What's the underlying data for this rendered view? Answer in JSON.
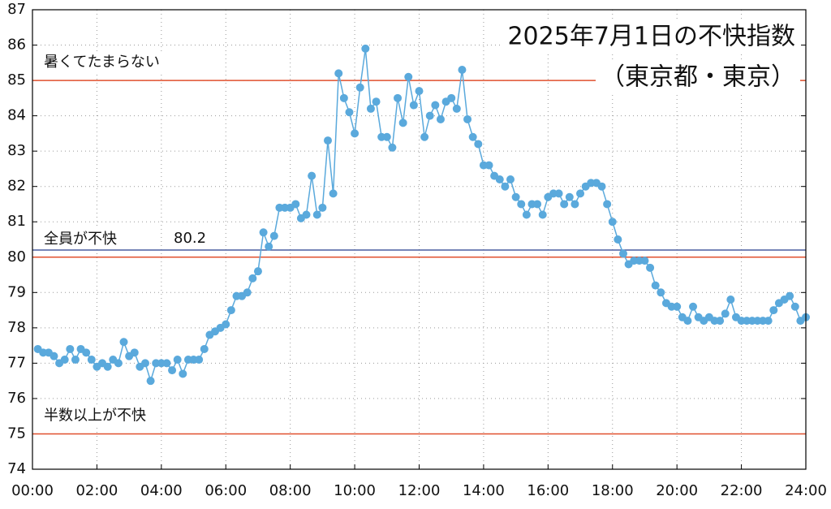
{
  "chart_data": {
    "type": "line",
    "title": "2025年7月1日の不快指数",
    "subtitle": "（東京都・東京）",
    "x": [
      10,
      20,
      30,
      40,
      50,
      60,
      70,
      80,
      90,
      100,
      110,
      120,
      130,
      140,
      150,
      160,
      170,
      180,
      190,
      200,
      210,
      220,
      230,
      240,
      250,
      260,
      270,
      280,
      290,
      300,
      310,
      320,
      330,
      340,
      350,
      360,
      370,
      380,
      390,
      400,
      410,
      420,
      430,
      440,
      450,
      460,
      470,
      480,
      490,
      500,
      510,
      520,
      530,
      540,
      550,
      560,
      570,
      580,
      590,
      600,
      610,
      620,
      630,
      640,
      650,
      660,
      670,
      680,
      690,
      700,
      710,
      720,
      730,
      740,
      750,
      760,
      770,
      780,
      790,
      800,
      810,
      820,
      830,
      840,
      850,
      860,
      870,
      880,
      890,
      900,
      910,
      920,
      930,
      940,
      950,
      960,
      970,
      980,
      990,
      1000,
      1010,
      1020,
      1030,
      1040,
      1050,
      1060,
      1070,
      1080,
      1090,
      1100,
      1110,
      1120,
      1130,
      1140,
      1150,
      1160,
      1170,
      1180,
      1190,
      1200,
      1210,
      1220,
      1230,
      1240,
      1250,
      1260,
      1270,
      1280,
      1290,
      1300,
      1310,
      1320,
      1330,
      1340,
      1350,
      1360,
      1370,
      1380,
      1390,
      1400,
      1410,
      1420,
      1430,
      1440
    ],
    "values": [
      77.4,
      77.3,
      77.3,
      77.2,
      77.0,
      77.1,
      77.4,
      77.1,
      77.4,
      77.3,
      77.1,
      76.9,
      77.0,
      76.9,
      77.1,
      77.0,
      77.6,
      77.2,
      77.3,
      76.9,
      77.0,
      76.5,
      77.0,
      77.0,
      77.0,
      76.8,
      77.1,
      76.7,
      77.1,
      77.1,
      77.1,
      77.4,
      77.8,
      77.9,
      78.0,
      78.1,
      78.5,
      78.9,
      78.9,
      79.0,
      79.4,
      79.6,
      80.7,
      80.3,
      80.6,
      81.4,
      81.4,
      81.4,
      81.5,
      81.1,
      81.2,
      82.3,
      81.2,
      81.4,
      83.3,
      81.8,
      85.2,
      84.5,
      84.1,
      83.5,
      84.8,
      85.9,
      84.2,
      84.4,
      83.4,
      83.4,
      83.1,
      84.5,
      83.8,
      85.1,
      84.3,
      84.7,
      83.4,
      84.0,
      84.3,
      83.9,
      84.4,
      84.5,
      84.2,
      85.3,
      83.9,
      83.4,
      83.2,
      82.6,
      82.6,
      82.3,
      82.2,
      82.0,
      82.2,
      81.7,
      81.5,
      81.2,
      81.5,
      81.5,
      81.2,
      81.7,
      81.8,
      81.8,
      81.5,
      81.7,
      81.5,
      81.8,
      82.0,
      82.1,
      82.1,
      82.0,
      81.5,
      81.0,
      80.5,
      80.1,
      79.8,
      79.9,
      79.9,
      79.9,
      79.7,
      79.2,
      79.0,
      78.7,
      78.6,
      78.6,
      78.3,
      78.2,
      78.6,
      78.3,
      78.2,
      78.3,
      78.2,
      78.2,
      78.4,
      78.8,
      78.3,
      78.2,
      78.2,
      78.2,
      78.2,
      78.2,
      78.2,
      78.5,
      78.7,
      78.8,
      78.9,
      78.6,
      78.2,
      78.3
    ],
    "color": "#5aa9dc",
    "xlim": [
      0,
      1440
    ],
    "xticks": [
      {
        "value": 0,
        "label": "00:00"
      },
      {
        "value": 120,
        "label": "02:00"
      },
      {
        "value": 240,
        "label": "04:00"
      },
      {
        "value": 360,
        "label": "06:00"
      },
      {
        "value": 480,
        "label": "08:00"
      },
      {
        "value": 600,
        "label": "10:00"
      },
      {
        "value": 720,
        "label": "12:00"
      },
      {
        "value": 840,
        "label": "14:00"
      },
      {
        "value": 960,
        "label": "16:00"
      },
      {
        "value": 1080,
        "label": "18:00"
      },
      {
        "value": 1200,
        "label": "20:00"
      },
      {
        "value": 1320,
        "label": "22:00"
      },
      {
        "value": 1440,
        "label": "24:00"
      }
    ],
    "ylim": [
      74,
      87
    ],
    "yticks": [
      74,
      75,
      76,
      77,
      78,
      79,
      80,
      81,
      82,
      83,
      84,
      85,
      86,
      87
    ],
    "grid": true,
    "reference_lines": [
      {
        "value": 85,
        "label": "暑くてたまらない",
        "color": "#e0502e"
      },
      {
        "value": 80,
        "label": "全員が不快",
        "color": "#e0502e"
      },
      {
        "value": 75,
        "label": "半数以上が不快",
        "color": "#e0502e"
      }
    ],
    "mean_line": {
      "value": 80.2,
      "color": "#4a5fa0"
    }
  }
}
